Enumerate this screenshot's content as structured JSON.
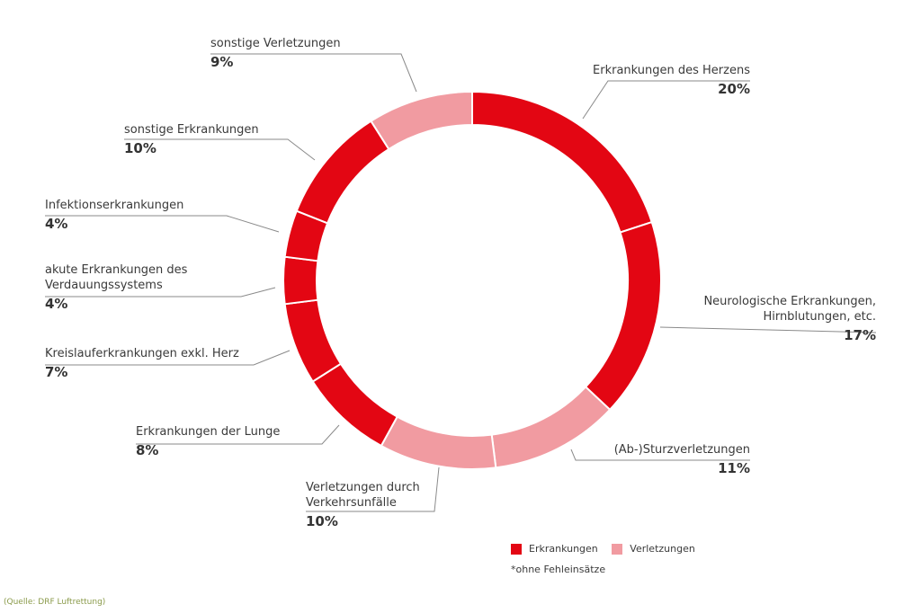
{
  "chart_data": {
    "type": "pie",
    "donut": true,
    "slices": [
      {
        "label": "Erkrankungen des Herzens",
        "value_text": "20%",
        "value": 20,
        "category": "Erkrankungen"
      },
      {
        "label": "Neurologische Erkrankungen, Hirnblutungen, etc.",
        "label_lines": [
          "Neurologische Erkrankungen,",
          "Hirnblutungen, etc."
        ],
        "value_text": "17%",
        "value": 17,
        "category": "Erkrankungen"
      },
      {
        "label": "(Ab-)Sturzverletzungen",
        "value_text": "11%",
        "value": 11,
        "category": "Verletzungen"
      },
      {
        "label": "Verletzungen durch Verkehrsunfälle",
        "label_lines": [
          "Verletzungen durch",
          "Verkehrsunfälle"
        ],
        "value_text": "10%",
        "value": 10,
        "category": "Verletzungen"
      },
      {
        "label": "Erkrankungen der Lunge",
        "value_text": "8%",
        "value": 8,
        "category": "Erkrankungen"
      },
      {
        "label": "Kreislauferkrankungen exkl. Herz",
        "value_text": "7%",
        "value": 7,
        "category": "Erkrankungen"
      },
      {
        "label": "akute Erkrankungen des Verdauungssystems",
        "label_lines": [
          "akute Erkrankungen des",
          "Verdauungssystems"
        ],
        "value_text": "4%",
        "value": 4,
        "category": "Erkrankungen"
      },
      {
        "label": "Infektionserkrankungen",
        "value_text": "4%",
        "value": 4,
        "category": "Erkrankungen"
      },
      {
        "label": "sonstige Erkrankungen",
        "value_text": "10%",
        "value": 10,
        "category": "Erkrankungen"
      },
      {
        "label": "sonstige Verletzungen",
        "value_text": "9%",
        "value": 9,
        "category": "Verletzungen"
      }
    ],
    "legend": [
      {
        "name": "Erkrankungen",
        "color": "#e30613"
      },
      {
        "name": "Verletzungen",
        "color": "#f19ba1"
      }
    ],
    "colors": {
      "Erkrankungen": "#e30613",
      "Verletzungen": "#f19ba1"
    },
    "footnote": "*ohne Fehleinsätze"
  },
  "source": "(Quelle: DRF Luftrettung)"
}
